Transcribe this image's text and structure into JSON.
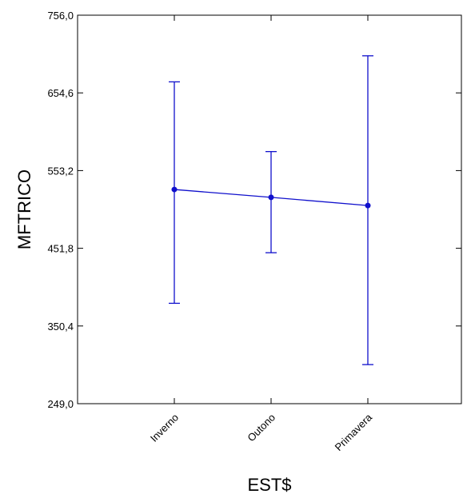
{
  "chart_data": {
    "type": "line",
    "xlabel": "EST$",
    "ylabel": "MFTRICO",
    "ylim": [
      249.0,
      756.0
    ],
    "yticks": [
      "756,0",
      "654,6",
      "553,2",
      "451,8",
      "350,4",
      "249,0"
    ],
    "categories": [
      "Inverno",
      "Outono",
      "Primavera"
    ],
    "series": [
      {
        "values": [
          528.5,
          518.3,
          507.6
        ],
        "err_low": [
          380.0,
          446.0,
          300.0
        ],
        "err_high": [
          669.0,
          578.0,
          703.0
        ]
      }
    ],
    "grid": false,
    "color": "#1010cc"
  }
}
